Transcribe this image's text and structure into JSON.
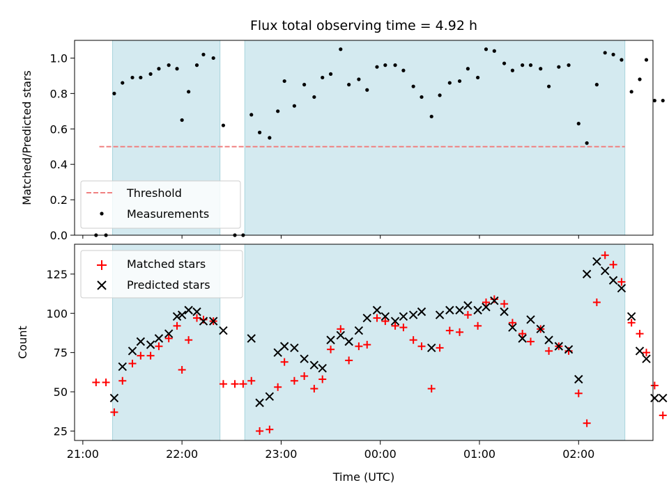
{
  "figure": {
    "title": "Flux total observing time = 4.92 h",
    "xlabel": "Time (UTC)"
  },
  "chart_data": [
    {
      "type": "scatter",
      "panel": "top",
      "title": "Flux total observing time = 4.92 h",
      "ylabel": "Matched/Predicted stars",
      "ylim": [
        0,
        1.1
      ],
      "yticks": [
        0.0,
        0.2,
        0.4,
        0.6,
        0.8,
        1.0
      ],
      "ytick_labels": [
        "0.0",
        "0.2",
        "0.4",
        "0.6",
        "0.8",
        "1.0"
      ],
      "legend": {
        "placement": "lower-left",
        "entries": [
          {
            "label": "Threshold",
            "style": "dashed-line",
            "color": "#f08080"
          },
          {
            "label": "Measurements",
            "style": "dot",
            "color": "#000000"
          }
        ]
      },
      "threshold": {
        "name": "Threshold",
        "value": 0.5,
        "x_start": "21:10",
        "x_end": "02:28",
        "color": "#f08080"
      },
      "shaded_intervals": [
        {
          "start": "21:18",
          "end": "22:23",
          "color": "#d4eaf0"
        },
        {
          "start": "22:38",
          "end": "02:28",
          "color": "#d4eaf0"
        }
      ],
      "series": [
        {
          "name": "Measurements",
          "color": "#000000",
          "x": [
            "21:08",
            "21:14",
            "21:19",
            "21:24",
            "21:30",
            "21:35",
            "21:41",
            "21:46",
            "21:52",
            "21:57",
            "22:00",
            "22:04",
            "22:09",
            "22:13",
            "22:19",
            "22:25",
            "22:32",
            "22:37",
            "22:42",
            "22:47",
            "22:53",
            "22:58",
            "23:02",
            "23:08",
            "23:14",
            "23:20",
            "23:25",
            "23:30",
            "23:36",
            "23:41",
            "23:47",
            "23:52",
            "23:58",
            "00:03",
            "00:09",
            "00:14",
            "00:20",
            "00:25",
            "00:31",
            "00:36",
            "00:42",
            "00:48",
            "00:53",
            "00:59",
            "01:04",
            "01:09",
            "01:15",
            "01:20",
            "01:26",
            "01:31",
            "01:37",
            "01:42",
            "01:48",
            "01:54",
            "02:00",
            "02:05",
            "02:11",
            "02:16",
            "02:21",
            "02:26",
            "02:32",
            "02:37",
            "02:41",
            "02:46",
            "02:51"
          ],
          "y": [
            0.0,
            0.0,
            0.8,
            0.86,
            0.89,
            0.89,
            0.91,
            0.94,
            0.96,
            0.94,
            0.65,
            0.81,
            0.96,
            1.02,
            1.0,
            0.62,
            0.0,
            0.0,
            0.68,
            0.58,
            0.55,
            0.7,
            0.87,
            0.73,
            0.85,
            0.78,
            0.89,
            0.91,
            1.05,
            0.85,
            0.88,
            0.82,
            0.95,
            0.96,
            0.96,
            0.93,
            0.84,
            0.78,
            0.67,
            0.79,
            0.86,
            0.87,
            0.94,
            0.89,
            1.05,
            1.04,
            0.97,
            0.93,
            0.96,
            0.96,
            0.94,
            0.84,
            0.95,
            0.96,
            0.63,
            0.52,
            0.85,
            1.03,
            1.02,
            0.99,
            0.81,
            0.88,
            0.99,
            0.76,
            0.76
          ]
        }
      ]
    },
    {
      "type": "scatter",
      "panel": "bottom",
      "xlabel": "Time (UTC)",
      "ylabel": "Count",
      "xlim": [
        "20:55",
        "02:45"
      ],
      "xticks": [
        "21:00",
        "22:00",
        "23:00",
        "00:00",
        "01:00",
        "02:00"
      ],
      "ylim": [
        19,
        144
      ],
      "yticks": [
        25,
        50,
        75,
        100,
        125
      ],
      "ytick_labels": [
        "25",
        "50",
        "75",
        "100",
        "125"
      ],
      "legend": {
        "placement": "top-left",
        "entries": [
          {
            "label": "Matched stars",
            "style": "plus",
            "color": "#ff0000"
          },
          {
            "label": "Predicted stars",
            "style": "x",
            "color": "#000000"
          }
        ]
      },
      "shaded_intervals": [
        {
          "start": "21:18",
          "end": "22:23",
          "color": "#d4eaf0"
        },
        {
          "start": "22:38",
          "end": "02:28",
          "color": "#d4eaf0"
        }
      ],
      "series": [
        {
          "name": "Matched stars",
          "color": "#ff0000",
          "marker": "plus",
          "x": [
            "21:08",
            "21:14",
            "21:19",
            "21:24",
            "21:30",
            "21:35",
            "21:41",
            "21:46",
            "21:52",
            "21:57",
            "22:00",
            "22:04",
            "22:09",
            "22:13",
            "22:19",
            "22:25",
            "22:32",
            "22:37",
            "22:42",
            "22:47",
            "22:53",
            "22:58",
            "23:02",
            "23:08",
            "23:14",
            "23:20",
            "23:25",
            "23:30",
            "23:36",
            "23:41",
            "23:47",
            "23:52",
            "23:58",
            "00:03",
            "00:09",
            "00:14",
            "00:20",
            "00:25",
            "00:31",
            "00:36",
            "00:42",
            "00:48",
            "00:53",
            "00:59",
            "01:04",
            "01:09",
            "01:15",
            "01:20",
            "01:26",
            "01:31",
            "01:37",
            "01:42",
            "01:48",
            "01:54",
            "02:00",
            "02:05",
            "02:11",
            "02:16",
            "02:21",
            "02:26",
            "02:32",
            "02:37",
            "02:41",
            "02:46",
            "02:51"
          ],
          "y": [
            56,
            56,
            37,
            57,
            68,
            73,
            73,
            79,
            84,
            92,
            64,
            83,
            97,
            96,
            95,
            55,
            55,
            55,
            57,
            25,
            26,
            53,
            69,
            57,
            60,
            52,
            58,
            77,
            90,
            70,
            79,
            80,
            97,
            95,
            92,
            91,
            83,
            79,
            52,
            78,
            89,
            88,
            99,
            92,
            107,
            109,
            106,
            94,
            87,
            82,
            90,
            76,
            79,
            76,
            49,
            30,
            107,
            137,
            131,
            120,
            94,
            87,
            75,
            54,
            35
          ]
        },
        {
          "name": "Predicted stars",
          "color": "#000000",
          "marker": "x",
          "x": [
            "21:19",
            "21:24",
            "21:30",
            "21:35",
            "21:41",
            "21:46",
            "21:52",
            "21:57",
            "22:00",
            "22:04",
            "22:09",
            "22:13",
            "22:19",
            "22:25",
            "22:42",
            "22:47",
            "22:53",
            "22:58",
            "23:02",
            "23:08",
            "23:14",
            "23:20",
            "23:25",
            "23:30",
            "23:36",
            "23:41",
            "23:47",
            "23:52",
            "23:58",
            "00:03",
            "00:09",
            "00:14",
            "00:20",
            "00:25",
            "00:31",
            "00:36",
            "00:42",
            "00:48",
            "00:53",
            "00:59",
            "01:04",
            "01:09",
            "01:15",
            "01:20",
            "01:26",
            "01:31",
            "01:37",
            "01:42",
            "01:48",
            "01:54",
            "02:00",
            "02:05",
            "02:11",
            "02:16",
            "02:21",
            "02:26",
            "02:32",
            "02:37",
            "02:41",
            "02:46",
            "02:51"
          ],
          "y": [
            46,
            66,
            76,
            82,
            80,
            84,
            87,
            98,
            99,
            102,
            101,
            95,
            95,
            89,
            84,
            43,
            47,
            75,
            79,
            78,
            71,
            67,
            65,
            83,
            86,
            82,
            89,
            97,
            102,
            98,
            95,
            98,
            99,
            101,
            78,
            99,
            102,
            102,
            105,
            102,
            104,
            108,
            101,
            91,
            84,
            96,
            90,
            83,
            79,
            77,
            58,
            125,
            133,
            127,
            121,
            116,
            98,
            76,
            71,
            46,
            46
          ]
        }
      ]
    }
  ]
}
